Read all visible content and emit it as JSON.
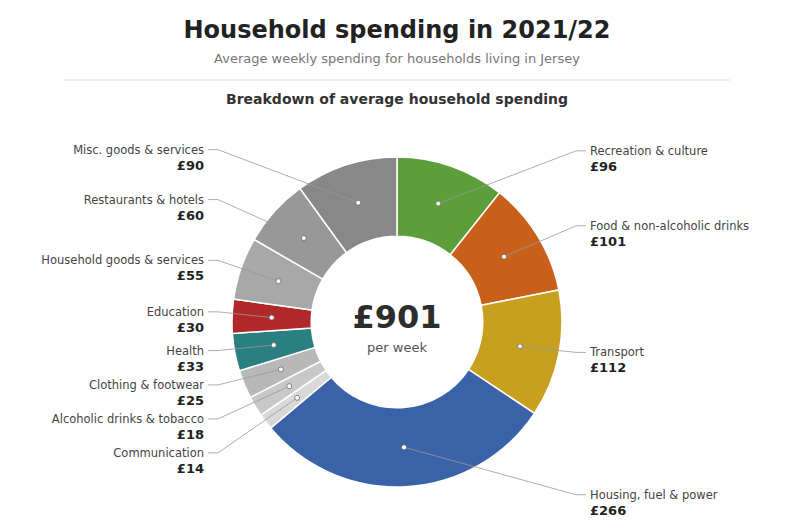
{
  "chart_data": {
    "type": "donut",
    "title": "Household spending in 2021/22",
    "subtitle": "Average weekly spending  for households  living in Jersey",
    "section_title": "Breakdown of average household spending",
    "center_label": "£901",
    "center_sublabel": "per week",
    "categories": [
      "Recreation & culture",
      "Food & non-alcoholic drinks",
      "Transport",
      "Housing, fuel & power",
      "Communication",
      "Alcoholic drinks & tobacco",
      "Clothing & footwear",
      "Health",
      "Education",
      "Household goods & services",
      "Restaurants & hotels",
      "Misc. goods & services"
    ],
    "values": [
      96,
      101,
      112,
      266,
      14,
      18,
      25,
      33,
      30,
      55,
      60,
      90
    ],
    "value_labels": [
      "£96",
      "£101",
      "£112",
      "£266",
      "£14",
      "£18",
      "£25",
      "£33",
      "£30",
      "£55",
      "£60",
      "£90"
    ],
    "data_labels": true,
    "colors": [
      "#5B9E3A",
      "#C8601A",
      "#C8A020",
      "#3A62A8",
      "#D8D8D8",
      "#C8C8C8",
      "#B8B8B8",
      "#2A8080",
      "#B02828",
      "#A8A8A8",
      "#989898",
      "#888888"
    ]
  }
}
